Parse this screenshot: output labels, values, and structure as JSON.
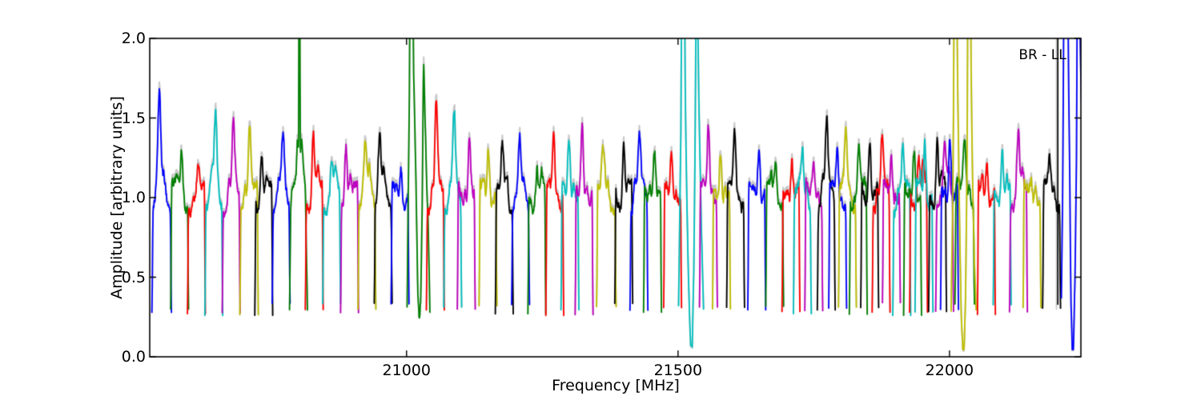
{
  "chart_data": {
    "type": "line",
    "title": "",
    "annotation": "BR - LL",
    "xlabel": "Frequency [MHz]",
    "ylabel": "Amplitude [arbitrary units]",
    "xlim": [
      20527,
      22242
    ],
    "ylim": [
      0.0,
      2.0
    ],
    "xticks": [
      21000,
      21500,
      22000
    ],
    "xtick_labels": [
      "21000",
      "21500",
      "22000"
    ],
    "yticks": [
      0.0,
      0.5,
      1.0,
      1.5,
      2.0
    ],
    "ytick_labels": [
      "0.0",
      "0.5",
      "1.0",
      "1.5",
      "2.0"
    ],
    "grid": false,
    "legend": "none",
    "axis_color": "#000000",
    "background": "#ffffff",
    "colors": {
      "b": "#0000ff",
      "g": "#008000",
      "r": "#ff0000",
      "c": "#00bfbf",
      "m": "#bf00bf",
      "y": "#bfbf00",
      "k": "#000000",
      "shadow": "#c8c8c8"
    },
    "band_fields": [
      "color",
      "center_mhz",
      "width_mhz",
      "peak_amp",
      "peak_pos",
      "seed",
      "shape_points_optional"
    ],
    "bands": [
      [
        "b",
        20549,
        36,
        1.62,
        0.38,
        1
      ],
      [
        "g",
        20582,
        33,
        1.4,
        0.62,
        2
      ],
      [
        "r",
        20613,
        33,
        1.22,
        0.58,
        3
      ],
      [
        "c",
        20645,
        33,
        1.5,
        0.6,
        4
      ],
      [
        "m",
        20677,
        33,
        1.47,
        0.62,
        5
      ],
      [
        "y",
        20710,
        34,
        1.55,
        0.52,
        6
      ],
      [
        "k",
        20737,
        33,
        1.37,
        0.38,
        7
      ],
      [
        "b",
        20769,
        33,
        1.38,
        0.6,
        8
      ],
      [
        "g",
        20801,
        33,
        1.4,
        0.6,
        9,
        [
          [
            0,
            0.29
          ],
          [
            0.07,
            0.95
          ],
          [
            0.14,
            1.06
          ],
          [
            0.25,
            1.1
          ],
          [
            0.36,
            1.12
          ],
          [
            0.44,
            1.38
          ],
          [
            0.5,
            1.3
          ],
          [
            0.54,
            2.7
          ],
          [
            0.56,
            2.7
          ],
          [
            0.6,
            1.28
          ],
          [
            0.68,
            1.35
          ],
          [
            0.78,
            1.2
          ],
          [
            0.88,
            1.05
          ],
          [
            0.95,
            0.6
          ],
          [
            1,
            0.29
          ]
        ]
      ],
      [
        "r",
        20830,
        33,
        1.5,
        0.44,
        10
      ],
      [
        "c",
        20862,
        33,
        1.27,
        0.5,
        11
      ],
      [
        "m",
        20895,
        33,
        1.46,
        0.3,
        12
      ],
      [
        "y",
        20927,
        33,
        1.33,
        0.4,
        13
      ],
      [
        "k",
        20957,
        33,
        1.39,
        0.3,
        14
      ],
      [
        "b",
        20988,
        33,
        1.31,
        0.55,
        15
      ],
      [
        "g",
        21022,
        42,
        2.0,
        0.2,
        16,
        [
          [
            0,
            0.3
          ],
          [
            0.05,
            1.0
          ],
          [
            0.1,
            1.6
          ],
          [
            0.14,
            2.75
          ],
          [
            0.24,
            2.75
          ],
          [
            0.28,
            1.85
          ],
          [
            0.33,
            1.5
          ],
          [
            0.4,
            1.0
          ],
          [
            0.47,
            0.4
          ],
          [
            0.53,
            0.21
          ],
          [
            0.6,
            0.35
          ],
          [
            0.66,
            0.9
          ],
          [
            0.72,
            1.9
          ],
          [
            0.78,
            1.55
          ],
          [
            0.85,
            1.15
          ],
          [
            0.93,
            0.8
          ],
          [
            1,
            0.3
          ]
        ]
      ],
      [
        "r",
        21053,
        33,
        1.61,
        0.55,
        17
      ],
      [
        "c",
        21085,
        33,
        1.53,
        0.58,
        18
      ],
      [
        "m",
        21110,
        33,
        1.5,
        0.68,
        19
      ],
      [
        "y",
        21150,
        33,
        1.43,
        0.52,
        20
      ],
      [
        "k",
        21180,
        33,
        1.32,
        0.4,
        21
      ],
      [
        "b",
        21210,
        33,
        1.37,
        0.45,
        22
      ],
      [
        "g",
        21240,
        33,
        1.3,
        0.5,
        23
      ],
      [
        "r",
        21273,
        33,
        1.5,
        0.44,
        24
      ],
      [
        "c",
        21301,
        33,
        1.47,
        0.45,
        25
      ],
      [
        "m",
        21327,
        33,
        1.56,
        0.4,
        26
      ],
      [
        "y",
        21368,
        36,
        1.27,
        0.35,
        27
      ],
      [
        "k",
        21400,
        33,
        1.44,
        0.5,
        28
      ],
      [
        "b",
        21428,
        33,
        1.4,
        0.52,
        29
      ],
      [
        "g",
        21453,
        33,
        1.43,
        0.6,
        30
      ],
      [
        "r",
        21490,
        33,
        1.39,
        0.45,
        31
      ],
      [
        "c",
        21524,
        46,
        2.0,
        0.18,
        32,
        [
          [
            0,
            0.3
          ],
          [
            0.05,
            0.9
          ],
          [
            0.1,
            1.5
          ],
          [
            0.13,
            2.75
          ],
          [
            0.22,
            2.75
          ],
          [
            0.27,
            1.6
          ],
          [
            0.33,
            1.0
          ],
          [
            0.4,
            0.45
          ],
          [
            0.48,
            0.08
          ],
          [
            0.55,
            0.07
          ],
          [
            0.61,
            0.55
          ],
          [
            0.66,
            1.3
          ],
          [
            0.71,
            2.4
          ],
          [
            0.76,
            2.2
          ],
          [
            0.82,
            1.55
          ],
          [
            0.9,
            0.9
          ],
          [
            1,
            0.3
          ]
        ]
      ],
      [
        "m",
        21556,
        33,
        1.56,
        0.5,
        33
      ],
      [
        "y",
        21580,
        33,
        1.42,
        0.45,
        34
      ],
      [
        "k",
        21606,
        33,
        1.44,
        0.45,
        35
      ],
      [
        "b",
        21645,
        33,
        1.42,
        0.62,
        36
      ],
      [
        "g",
        21678,
        33,
        1.32,
        0.55,
        37
      ],
      [
        "r",
        21708,
        33,
        1.35,
        0.55,
        38
      ],
      [
        "c",
        21729,
        33,
        1.32,
        0.5,
        39
      ],
      [
        "m",
        21750,
        33,
        1.3,
        0.5,
        40
      ],
      [
        "k",
        21773,
        33,
        1.47,
        0.52,
        41
      ],
      [
        "b",
        21794,
        33,
        1.34,
        0.48,
        42
      ],
      [
        "y",
        21812,
        33,
        1.44,
        0.42,
        43
      ],
      [
        "g",
        21832,
        33,
        1.35,
        0.52,
        44
      ],
      [
        "k",
        21853,
        33,
        1.48,
        0.5,
        45
      ],
      [
        "r",
        21874,
        33,
        1.4,
        0.55,
        46
      ],
      [
        "m",
        21893,
        33,
        1.34,
        0.5,
        47
      ],
      [
        "c",
        21912,
        33,
        1.34,
        0.55,
        48
      ],
      [
        "g",
        21932,
        33,
        1.44,
        0.58,
        49
      ],
      [
        "r",
        21943,
        33,
        1.36,
        0.5,
        50
      ],
      [
        "c",
        21953,
        33,
        1.46,
        0.55,
        51
      ],
      [
        "k",
        21978,
        33,
        1.48,
        0.48,
        52
      ],
      [
        "m",
        21991,
        33,
        1.31,
        0.5,
        53
      ],
      [
        "b",
        22000,
        33,
        1.48,
        0.52,
        54
      ],
      [
        "g",
        22028,
        36,
        1.43,
        0.5,
        55
      ],
      [
        "y",
        22026,
        46,
        2.0,
        0.15,
        56,
        [
          [
            0,
            0.3
          ],
          [
            0.06,
            0.9
          ],
          [
            0.1,
            1.6
          ],
          [
            0.13,
            2.8
          ],
          [
            0.2,
            2.8
          ],
          [
            0.26,
            1.7
          ],
          [
            0.33,
            0.9
          ],
          [
            0.4,
            0.3
          ],
          [
            0.47,
            0.05
          ],
          [
            0.52,
            0.06
          ],
          [
            0.58,
            0.4
          ],
          [
            0.64,
            1.2
          ],
          [
            0.68,
            2.8
          ],
          [
            0.76,
            2.8
          ],
          [
            0.8,
            1.8
          ],
          [
            0.86,
            1.1
          ],
          [
            0.93,
            0.6
          ],
          [
            1,
            0.3
          ]
        ]
      ],
      [
        "r",
        22068,
        33,
        1.34,
        0.52,
        57
      ],
      [
        "c",
        22097,
        33,
        1.46,
        0.5,
        58
      ],
      [
        "m",
        22127,
        33,
        1.43,
        0.48,
        59
      ],
      [
        "y",
        22152,
        33,
        1.19,
        0.45,
        60
      ],
      [
        "k",
        22188,
        33,
        1.26,
        0.4,
        61
      ],
      [
        "b",
        22226,
        40,
        2.0,
        0.2,
        62,
        [
          [
            0,
            0.35
          ],
          [
            0.06,
            1.0
          ],
          [
            0.1,
            1.9
          ],
          [
            0.13,
            2.8
          ],
          [
            0.28,
            2.8
          ],
          [
            0.33,
            1.75
          ],
          [
            0.38,
            1.2
          ],
          [
            0.44,
            0.35
          ],
          [
            0.5,
            0.03
          ],
          [
            0.56,
            0.04
          ],
          [
            0.63,
            0.5
          ],
          [
            0.7,
            1.3
          ],
          [
            0.74,
            2.6
          ],
          [
            0.82,
            2.4
          ],
          [
            0.9,
            1.75
          ],
          [
            1,
            1.2
          ]
        ]
      ]
    ],
    "vline_fields": [
      "color",
      "x_mhz",
      "y_from",
      "y_to"
    ],
    "vlines": [
      [
        "shadow",
        22197.0,
        0.3,
        2.6
      ],
      [
        "k",
        22199.5,
        0.33,
        2.6
      ]
    ]
  }
}
